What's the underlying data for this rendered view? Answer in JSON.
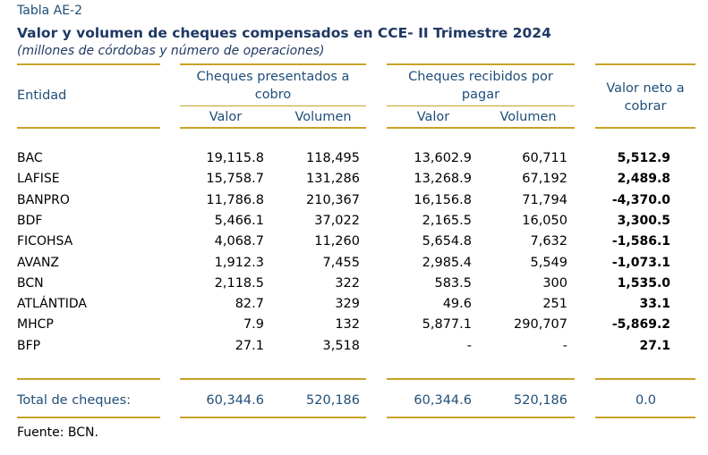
{
  "label": "Tabla AE-2",
  "title": "Valor y volumen de cheques compensados en CCE- II Trimestre 2024",
  "subtitle": "(millones de córdobas y número de operaciones)",
  "headers": {
    "entidad": "Entidad",
    "group1_line1": "Cheques presentados a",
    "group1_line2": "cobro",
    "group2_line1": "Cheques recibidos por",
    "group2_line2": "pagar",
    "net_line1": "Valor neto a",
    "net_line2": "cobrar",
    "valor": "Valor",
    "volumen": "Volumen"
  },
  "rows": [
    {
      "entidad": "BAC",
      "pres_valor": "19,115.8",
      "pres_vol": "118,495",
      "rec_valor": "13,602.9",
      "rec_vol": "60,711",
      "neto": "5,512.9"
    },
    {
      "entidad": "LAFISE",
      "pres_valor": "15,758.7",
      "pres_vol": "131,286",
      "rec_valor": "13,268.9",
      "rec_vol": "67,192",
      "neto": "2,489.8"
    },
    {
      "entidad": "BANPRO",
      "pres_valor": "11,786.8",
      "pres_vol": "210,367",
      "rec_valor": "16,156.8",
      "rec_vol": "71,794",
      "neto": "-4,370.0"
    },
    {
      "entidad": "BDF",
      "pres_valor": "5,466.1",
      "pres_vol": "37,022",
      "rec_valor": "2,165.5",
      "rec_vol": "16,050",
      "neto": "3,300.5"
    },
    {
      "entidad": "FICOHSA",
      "pres_valor": "4,068.7",
      "pres_vol": "11,260",
      "rec_valor": "5,654.8",
      "rec_vol": "7,632",
      "neto": "-1,586.1"
    },
    {
      "entidad": "AVANZ",
      "pres_valor": "1,912.3",
      "pres_vol": "7,455",
      "rec_valor": "2,985.4",
      "rec_vol": "5,549",
      "neto": "-1,073.1"
    },
    {
      "entidad": "BCN",
      "pres_valor": "2,118.5",
      "pres_vol": "322",
      "rec_valor": "583.5",
      "rec_vol": "300",
      "neto": "1,535.0"
    },
    {
      "entidad": "ATLÁNTIDA",
      "pres_valor": "82.7",
      "pres_vol": "329",
      "rec_valor": "49.6",
      "rec_vol": "251",
      "neto": "33.1"
    },
    {
      "entidad": "MHCP",
      "pres_valor": "7.9",
      "pres_vol": "132",
      "rec_valor": "5,877.1",
      "rec_vol": "290,707",
      "neto": "-5,869.2"
    },
    {
      "entidad": "BFP",
      "pres_valor": "27.1",
      "pres_vol": "3,518",
      "rec_valor": "-",
      "rec_vol": "-",
      "neto": "27.1"
    }
  ],
  "total": {
    "entidad": "Total de cheques:",
    "pres_valor": "60,344.6",
    "pres_vol": "520,186",
    "rec_valor": "60,344.6",
    "rec_vol": "520,186",
    "neto": "0.0"
  },
  "source": "Fuente: BCN."
}
